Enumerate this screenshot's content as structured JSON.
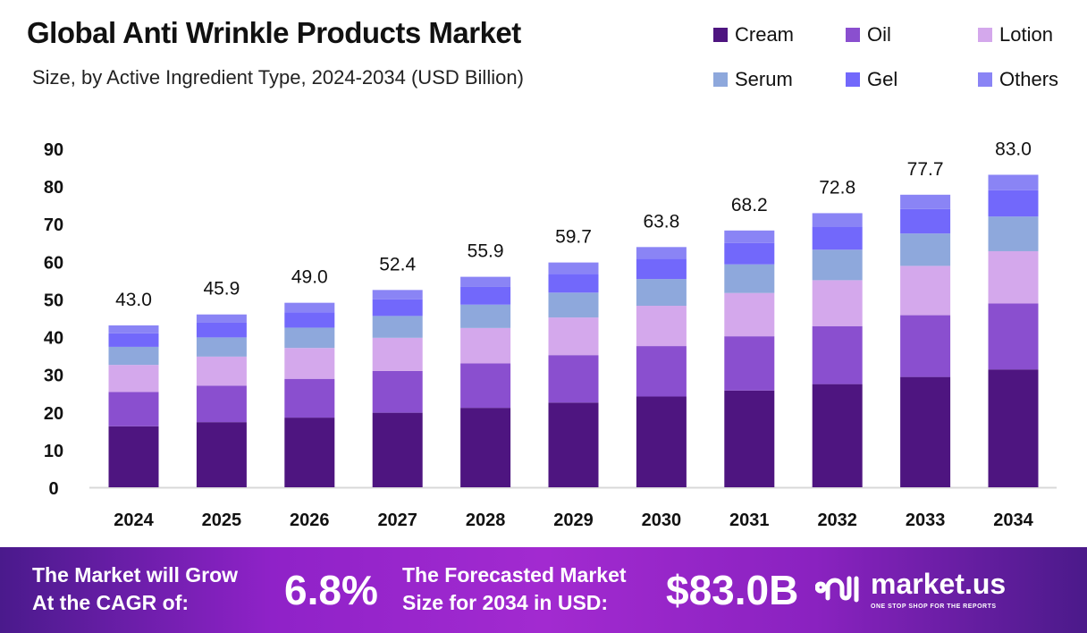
{
  "chart_data": {
    "type": "bar",
    "stacked": true,
    "title": "Global Anti Wrinkle Products Market",
    "subtitle": "Size, by  Active Ingredient  Type, 2024-2034 (USD Billion)",
    "categories": [
      "2024",
      "2025",
      "2026",
      "2027",
      "2028",
      "2029",
      "2030",
      "2031",
      "2032",
      "2033",
      "2034"
    ],
    "series": [
      {
        "name": "Cream",
        "color": "#4e1580",
        "values": [
          16.2,
          17.3,
          18.5,
          19.8,
          21.1,
          22.5,
          24.1,
          25.7,
          27.4,
          29.3,
          31.3
        ]
      },
      {
        "name": "Oil",
        "color": "#8a4fcf",
        "values": [
          9.1,
          9.7,
          10.3,
          11.1,
          11.8,
          12.6,
          13.4,
          14.4,
          15.4,
          16.4,
          17.5
        ]
      },
      {
        "name": "Lotion",
        "color": "#d4a8ec",
        "values": [
          7.2,
          7.7,
          8.2,
          8.8,
          9.4,
          10.0,
          10.7,
          11.5,
          12.2,
          13.1,
          13.9
        ]
      },
      {
        "name": "Serum",
        "color": "#8ea8dc",
        "values": [
          4.8,
          5.1,
          5.4,
          5.8,
          6.2,
          6.6,
          7.1,
          7.6,
          8.1,
          8.6,
          9.2
        ]
      },
      {
        "name": "Gel",
        "color": "#7268fb",
        "values": [
          3.6,
          3.9,
          4.1,
          4.4,
          4.7,
          5.0,
          5.4,
          5.7,
          6.1,
          6.5,
          7.0
        ]
      },
      {
        "name": "Others",
        "color": "#8a84f5",
        "values": [
          2.1,
          2.2,
          2.5,
          2.5,
          2.7,
          3.0,
          3.1,
          3.3,
          3.6,
          3.8,
          4.1
        ]
      }
    ],
    "totals": [
      "43.0",
      "45.9",
      "49.0",
      "52.4",
      "55.9",
      "59.7",
      "63.8",
      "68.2",
      "72.8",
      "77.7",
      "83.0"
    ],
    "yticks": [
      0,
      10,
      20,
      30,
      40,
      50,
      60,
      70,
      80,
      90
    ],
    "ylim": [
      0,
      90
    ],
    "grid": false,
    "legend": "top-right"
  },
  "footer": {
    "cagr_label_1": "The Market will Grow",
    "cagr_label_2": "At the CAGR of:",
    "cagr_value": "6.8%",
    "forecast_label_1": "The Forecasted Market",
    "forecast_label_2": "Size for 2034 in USD:",
    "forecast_value": "$83.0B",
    "logo_name": "market.us",
    "logo_tagline": "ONE STOP SHOP FOR THE REPORTS"
  }
}
